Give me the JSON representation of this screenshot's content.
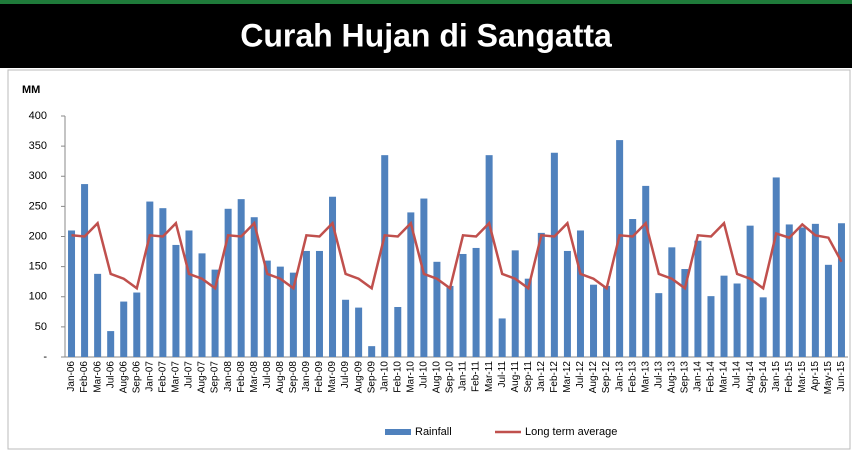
{
  "chart_data": {
    "type": "bar_line",
    "title": "Curah Hujan di Sangatta",
    "y_label": "MM",
    "categories": [
      "Jan-06",
      "Feb-06",
      "Mar-06",
      "Jul-06",
      "Aug-06",
      "Sep-06",
      "Jan-07",
      "Feb-07",
      "Mar-07",
      "Jul-07",
      "Aug-07",
      "Sep-07",
      "Jan-08",
      "Feb-08",
      "Mar-08",
      "Jul-08",
      "Aug-08",
      "Sep-08",
      "Jan-09",
      "Feb-09",
      "Mar-09",
      "Jul-09",
      "Aug-09",
      "Sep-09",
      "Jan-10",
      "Feb-10",
      "Mar-10",
      "Jul-10",
      "Aug-10",
      "Sep-10",
      "Jan-11",
      "Feb-11",
      "Mar-11",
      "Jul-11",
      "Aug-11",
      "Sep-11",
      "Jan-12",
      "Feb-12",
      "Mar-12",
      "Jul-12",
      "Aug-12",
      "Sep-12",
      "Jan-13",
      "Feb-13",
      "Mar-13",
      "Jul-13",
      "Aug-13",
      "Sep-13",
      "Jan-14",
      "Feb-14",
      "Mar-14",
      "Jul-14",
      "Aug-14",
      "Sep-14",
      "Jan-15",
      "Feb-15",
      "Mar-15",
      "Apr-15",
      "May-15",
      "Jun-15"
    ],
    "series": [
      {
        "name": "Rainfall",
        "type": "bar",
        "color": "#4f81bd",
        "values": [
          210,
          287,
          138,
          43,
          92,
          107,
          258,
          247,
          186,
          210,
          172,
          145,
          246,
          262,
          232,
          160,
          150,
          140,
          176,
          176,
          266,
          95,
          82,
          18,
          335,
          83,
          240,
          263,
          158,
          118,
          171,
          181,
          335,
          64,
          177,
          130,
          206,
          339,
          176,
          210,
          120,
          118,
          360,
          229,
          284,
          106,
          182,
          146,
          193,
          101,
          135,
          122,
          218,
          99,
          298,
          220,
          215,
          221,
          153,
          222
        ]
      },
      {
        "name": "Long term average",
        "type": "line",
        "color": "#c0504d",
        "values": [
          202,
          200,
          222,
          138,
          130,
          114,
          202,
          200,
          222,
          138,
          130,
          114,
          202,
          200,
          222,
          138,
          130,
          114,
          202,
          200,
          222,
          138,
          130,
          114,
          202,
          200,
          222,
          138,
          130,
          114,
          202,
          200,
          222,
          138,
          130,
          114,
          202,
          200,
          222,
          138,
          130,
          114,
          202,
          200,
          222,
          138,
          130,
          114,
          202,
          200,
          222,
          138,
          130,
          114,
          205,
          198,
          220,
          202,
          198,
          158
        ]
      }
    ],
    "ylim": [
      0,
      400
    ],
    "yticks": [
      {
        "value": 0,
        "label": "-"
      },
      50,
      100,
      150,
      200,
      250,
      300,
      350,
      400
    ],
    "grid": false,
    "legend": "bottom"
  }
}
